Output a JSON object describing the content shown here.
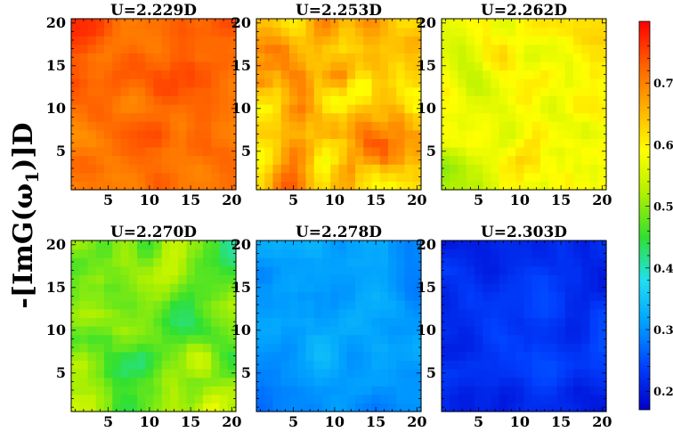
{
  "chart_data": {
    "type": "heatmap",
    "ylabel": "-[ImG(ω",
    "ylabel_sub": "1",
    "ylabel_tail": ")]D",
    "colorbar": {
      "range": [
        0.17,
        0.8
      ],
      "ticks": [
        0.2,
        0.3,
        0.4,
        0.5,
        0.6,
        0.7
      ],
      "tick_labels": [
        "0.2",
        "0.3",
        "0.4",
        "0.5",
        "0.6",
        "0.7"
      ],
      "colormap": [
        "#0000c8",
        "#0040ff",
        "#00a0ff",
        "#20e0f0",
        "#30e030",
        "#b0f000",
        "#ffff00",
        "#ffb000",
        "#ff6000",
        "#ff0000"
      ]
    },
    "grid_size": 20,
    "x_ticks": [
      5,
      10,
      15,
      20
    ],
    "y_ticks": [
      5,
      10,
      15,
      20
    ],
    "x_tick_labels": [
      "5",
      "10",
      "15",
      "20"
    ],
    "y_tick_labels": [
      "5",
      "10",
      "15",
      "20"
    ],
    "panels": [
      {
        "title": "U=2.229D",
        "mean": 0.72,
        "spread": 0.05,
        "seed": 11
      },
      {
        "title": "U=2.253D",
        "mean": 0.66,
        "spread": 0.08,
        "seed": 23
      },
      {
        "title": "U=2.262D",
        "mean": 0.58,
        "spread": 0.08,
        "seed": 37
      },
      {
        "title": "U=2.270D",
        "mean": 0.49,
        "spread": 0.08,
        "seed": 41
      },
      {
        "title": "U=2.278D",
        "mean": 0.31,
        "spread": 0.04,
        "seed": 53
      },
      {
        "title": "U=2.303D",
        "mean": 0.225,
        "spread": 0.03,
        "seed": 67
      }
    ]
  }
}
